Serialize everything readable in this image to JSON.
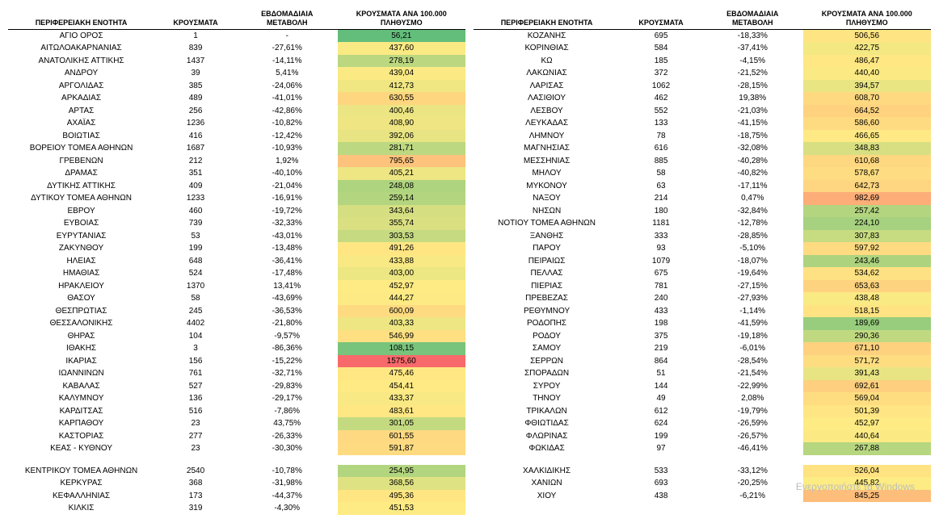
{
  "headers": {
    "region": "ΠΕΡΙΦΕΡΕΙΑΚΗ ΕΝΟΤΗΤΑ",
    "cases": "ΚΡΟΥΣΜΑΤΑ",
    "change": "ΕΒΔΟΜΑΔΙΑΙΑ ΜΕΤΑΒΟΛΗ",
    "per100k": "ΚΡΟΥΣΜΑΤΑ ΑΝΑ 100.000 ΠΛΗΘΥΣΜΟ"
  },
  "watermark": "Ενεργοποιήστε τα Windows",
  "color_scale": {
    "min_color": "#63be7b",
    "mid_color": "#ffeb84",
    "max_color": "#f8696b",
    "min_value": 56.21,
    "max_value": 1575.6
  },
  "left": [
    {
      "region": "ΑΓΙΟ ΟΡΟΣ",
      "cases": "1",
      "change": "-",
      "per100k": "56,21",
      "per100k_v": 56.21
    },
    {
      "region": "ΑΙΤΩΛΟΑΚΑΡΝΑΝΙΑΣ",
      "cases": "839",
      "change": "-27,61%",
      "per100k": "437,60",
      "per100k_v": 437.6
    },
    {
      "region": "ΑΝΑΤΟΛΙΚΗΣ ΑΤΤΙΚΗΣ",
      "cases": "1437",
      "change": "-14,11%",
      "per100k": "278,19",
      "per100k_v": 278.19
    },
    {
      "region": "ΑΝΔΡΟΥ",
      "cases": "39",
      "change": "5,41%",
      "per100k": "439,04",
      "per100k_v": 439.04
    },
    {
      "region": "ΑΡΓΟΛΙΔΑΣ",
      "cases": "385",
      "change": "-24,06%",
      "per100k": "412,73",
      "per100k_v": 412.73
    },
    {
      "region": "ΑΡΚΑΔΙΑΣ",
      "cases": "489",
      "change": "-41,01%",
      "per100k": "630,55",
      "per100k_v": 630.55
    },
    {
      "region": "ΑΡΤΑΣ",
      "cases": "256",
      "change": "-42,86%",
      "per100k": "400,46",
      "per100k_v": 400.46
    },
    {
      "region": "ΑΧΑΪΑΣ",
      "cases": "1236",
      "change": "-10,82%",
      "per100k": "408,90",
      "per100k_v": 408.9
    },
    {
      "region": "ΒΟΙΩΤΙΑΣ",
      "cases": "416",
      "change": "-12,42%",
      "per100k": "392,06",
      "per100k_v": 392.06
    },
    {
      "region": "ΒΟΡΕΙΟΥ ΤΟΜΕΑ ΑΘΗΝΩΝ",
      "cases": "1687",
      "change": "-10,93%",
      "per100k": "281,71",
      "per100k_v": 281.71
    },
    {
      "region": "ΓΡΕΒΕΝΩΝ",
      "cases": "212",
      "change": "1,92%",
      "per100k": "795,65",
      "per100k_v": 795.65
    },
    {
      "region": "ΔΡΑΜΑΣ",
      "cases": "351",
      "change": "-40,10%",
      "per100k": "405,21",
      "per100k_v": 405.21
    },
    {
      "region": "ΔΥΤΙΚΗΣ ΑΤΤΙΚΗΣ",
      "cases": "409",
      "change": "-21,04%",
      "per100k": "248,08",
      "per100k_v": 248.08
    },
    {
      "region": "ΔΥΤΙΚΟΥ ΤΟΜΕΑ ΑΘΗΝΩΝ",
      "cases": "1233",
      "change": "-16,91%",
      "per100k": "259,14",
      "per100k_v": 259.14
    },
    {
      "region": "ΕΒΡΟΥ",
      "cases": "460",
      "change": "-19,72%",
      "per100k": "343,64",
      "per100k_v": 343.64
    },
    {
      "region": "ΕΥΒΟΙΑΣ",
      "cases": "739",
      "change": "-32,33%",
      "per100k": "355,74",
      "per100k_v": 355.74
    },
    {
      "region": "ΕΥΡΥΤΑΝΙΑΣ",
      "cases": "53",
      "change": "-43,01%",
      "per100k": "303,53",
      "per100k_v": 303.53
    },
    {
      "region": "ΖΑΚΥΝΘΟΥ",
      "cases": "199",
      "change": "-13,48%",
      "per100k": "491,26",
      "per100k_v": 491.26
    },
    {
      "region": "ΗΛΕΙΑΣ",
      "cases": "648",
      "change": "-36,41%",
      "per100k": "433,88",
      "per100k_v": 433.88
    },
    {
      "region": "ΗΜΑΘΙΑΣ",
      "cases": "524",
      "change": "-17,48%",
      "per100k": "403,00",
      "per100k_v": 403.0
    },
    {
      "region": "ΗΡΑΚΛΕΙΟΥ",
      "cases": "1370",
      "change": "13,41%",
      "per100k": "452,97",
      "per100k_v": 452.97
    },
    {
      "region": "ΘΑΣΟΥ",
      "cases": "58",
      "change": "-43,69%",
      "per100k": "444,27",
      "per100k_v": 444.27
    },
    {
      "region": "ΘΕΣΠΡΩΤΙΑΣ",
      "cases": "245",
      "change": "-36,53%",
      "per100k": "600,09",
      "per100k_v": 600.09
    },
    {
      "region": "ΘΕΣΣΑΛΟΝΙΚΗΣ",
      "cases": "4402",
      "change": "-21,80%",
      "per100k": "403,33",
      "per100k_v": 403.33
    },
    {
      "region": "ΘΗΡΑΣ",
      "cases": "104",
      "change": "-9,57%",
      "per100k": "546,99",
      "per100k_v": 546.99
    },
    {
      "region": "ΙΘΑΚΗΣ",
      "cases": "3",
      "change": "-86,36%",
      "per100k": "108,15",
      "per100k_v": 108.15
    },
    {
      "region": "ΙΚΑΡΙΑΣ",
      "cases": "156",
      "change": "-15,22%",
      "per100k": "1575,60",
      "per100k_v": 1575.6
    },
    {
      "region": "ΙΩΑΝΝΙΝΩΝ",
      "cases": "761",
      "change": "-32,71%",
      "per100k": "475,46",
      "per100k_v": 475.46
    },
    {
      "region": "ΚΑΒΑΛΑΣ",
      "cases": "527",
      "change": "-29,83%",
      "per100k": "454,41",
      "per100k_v": 454.41
    },
    {
      "region": "ΚΑΛΥΜΝΟΥ",
      "cases": "136",
      "change": "-29,17%",
      "per100k": "433,37",
      "per100k_v": 433.37
    },
    {
      "region": "ΚΑΡΔΙΤΣΑΣ",
      "cases": "516",
      "change": "-7,86%",
      "per100k": "483,61",
      "per100k_v": 483.61
    },
    {
      "region": "ΚΑΡΠΑΘΟΥ",
      "cases": "23",
      "change": "43,75%",
      "per100k": "301,05",
      "per100k_v": 301.05
    },
    {
      "region": "ΚΑΣΤΟΡΙΑΣ",
      "cases": "277",
      "change": "-26,33%",
      "per100k": "601,55",
      "per100k_v": 601.55
    },
    {
      "region": "ΚΕΑΣ - ΚΥΘΝΟΥ",
      "cases": "23",
      "change": "-30,30%",
      "per100k": "591,87",
      "per100k_v": 591.87
    },
    {
      "spacer": true
    },
    {
      "region": "ΚΕΝΤΡΙΚΟΥ ΤΟΜΕΑ ΑΘΗΝΩΝ",
      "cases": "2540",
      "change": "-10,78%",
      "per100k": "254,95",
      "per100k_v": 254.95
    },
    {
      "region": "ΚΕΡΚΥΡΑΣ",
      "cases": "368",
      "change": "-31,98%",
      "per100k": "368,56",
      "per100k_v": 368.56
    },
    {
      "region": "ΚΕΦΑΛΛΗΝΙΑΣ",
      "cases": "173",
      "change": "-44,37%",
      "per100k": "495,36",
      "per100k_v": 495.36
    },
    {
      "region": "ΚΙΛΚΙΣ",
      "cases": "319",
      "change": "-4,30%",
      "per100k": "451,53",
      "per100k_v": 451.53
    }
  ],
  "right": [
    {
      "region": "ΚΟΖΑΝΗΣ",
      "cases": "695",
      "change": "-18,33%",
      "per100k": "506,56",
      "per100k_v": 506.56
    },
    {
      "region": "ΚΟΡΙΝΘΙΑΣ",
      "cases": "584",
      "change": "-37,41%",
      "per100k": "422,75",
      "per100k_v": 422.75
    },
    {
      "region": "ΚΩ",
      "cases": "185",
      "change": "-4,15%",
      "per100k": "486,47",
      "per100k_v": 486.47
    },
    {
      "region": "ΛΑΚΩΝΙΑΣ",
      "cases": "372",
      "change": "-21,52%",
      "per100k": "440,40",
      "per100k_v": 440.4
    },
    {
      "region": "ΛΑΡΙΣΑΣ",
      "cases": "1062",
      "change": "-28,15%",
      "per100k": "394,57",
      "per100k_v": 394.57
    },
    {
      "region": "ΛΑΣΙΘΙΟΥ",
      "cases": "462",
      "change": "19,38%",
      "per100k": "608,70",
      "per100k_v": 608.7
    },
    {
      "region": "ΛΕΣΒΟΥ",
      "cases": "552",
      "change": "-21,03%",
      "per100k": "664,52",
      "per100k_v": 664.52
    },
    {
      "region": "ΛΕΥΚΑΔΑΣ",
      "cases": "133",
      "change": "-41,15%",
      "per100k": "586,60",
      "per100k_v": 586.6
    },
    {
      "region": "ΛΗΜΝΟΥ",
      "cases": "78",
      "change": "-18,75%",
      "per100k": "466,65",
      "per100k_v": 466.65
    },
    {
      "region": "ΜΑΓΝΗΣΙΑΣ",
      "cases": "616",
      "change": "-32,08%",
      "per100k": "348,83",
      "per100k_v": 348.83
    },
    {
      "region": "ΜΕΣΣΗΝΙΑΣ",
      "cases": "885",
      "change": "-40,28%",
      "per100k": "610,68",
      "per100k_v": 610.68
    },
    {
      "region": "ΜΗΛΟΥ",
      "cases": "58",
      "change": "-40,82%",
      "per100k": "578,67",
      "per100k_v": 578.67
    },
    {
      "region": "ΜΥΚΟΝΟΥ",
      "cases": "63",
      "change": "-17,11%",
      "per100k": "642,73",
      "per100k_v": 642.73
    },
    {
      "region": "ΝΑΞΟΥ",
      "cases": "214",
      "change": "0,47%",
      "per100k": "982,69",
      "per100k_v": 982.69
    },
    {
      "region": "ΝΗΣΩΝ",
      "cases": "180",
      "change": "-32,84%",
      "per100k": "257,42",
      "per100k_v": 257.42
    },
    {
      "region": "ΝΟΤΙΟΥ ΤΟΜΕΑ ΑΘΗΝΩΝ",
      "cases": "1181",
      "change": "-12,78%",
      "per100k": "224,10",
      "per100k_v": 224.1
    },
    {
      "region": "ΞΑΝΘΗΣ",
      "cases": "333",
      "change": "-28,85%",
      "per100k": "307,83",
      "per100k_v": 307.83
    },
    {
      "region": "ΠΑΡΟΥ",
      "cases": "93",
      "change": "-5,10%",
      "per100k": "597,92",
      "per100k_v": 597.92
    },
    {
      "region": "ΠΕΙΡΑΙΩΣ",
      "cases": "1079",
      "change": "-18,07%",
      "per100k": "243,46",
      "per100k_v": 243.46
    },
    {
      "region": "ΠΕΛΛΑΣ",
      "cases": "675",
      "change": "-19,64%",
      "per100k": "534,62",
      "per100k_v": 534.62
    },
    {
      "region": "ΠΙΕΡΙΑΣ",
      "cases": "781",
      "change": "-27,15%",
      "per100k": "653,63",
      "per100k_v": 653.63
    },
    {
      "region": "ΠΡΕΒΕΖΑΣ",
      "cases": "240",
      "change": "-27,93%",
      "per100k": "438,48",
      "per100k_v": 438.48
    },
    {
      "region": "ΡΕΘΥΜΝΟΥ",
      "cases": "433",
      "change": "-1,14%",
      "per100k": "518,15",
      "per100k_v": 518.15
    },
    {
      "region": "ΡΟΔΟΠΗΣ",
      "cases": "198",
      "change": "-41,59%",
      "per100k": "189,69",
      "per100k_v": 189.69
    },
    {
      "region": "ΡΟΔΟΥ",
      "cases": "375",
      "change": "-19,18%",
      "per100k": "290,36",
      "per100k_v": 290.36
    },
    {
      "region": "ΣΑΜΟΥ",
      "cases": "219",
      "change": "-6,01%",
      "per100k": "671,10",
      "per100k_v": 671.1
    },
    {
      "region": "ΣΕΡΡΩΝ",
      "cases": "864",
      "change": "-28,54%",
      "per100k": "571,72",
      "per100k_v": 571.72
    },
    {
      "region": "ΣΠΟΡΑΔΩΝ",
      "cases": "51",
      "change": "-21,54%",
      "per100k": "391,43",
      "per100k_v": 391.43
    },
    {
      "region": "ΣΥΡΟΥ",
      "cases": "144",
      "change": "-22,99%",
      "per100k": "692,61",
      "per100k_v": 692.61
    },
    {
      "region": "ΤΗΝΟΥ",
      "cases": "49",
      "change": "2,08%",
      "per100k": "569,04",
      "per100k_v": 569.04
    },
    {
      "region": "ΤΡΙΚΑΛΩΝ",
      "cases": "612",
      "change": "-19,79%",
      "per100k": "501,39",
      "per100k_v": 501.39
    },
    {
      "region": "ΦΘΙΩΤΙΔΑΣ",
      "cases": "624",
      "change": "-26,59%",
      "per100k": "452,97",
      "per100k_v": 452.97
    },
    {
      "region": "ΦΛΩΡΙΝΑΣ",
      "cases": "199",
      "change": "-26,57%",
      "per100k": "440,64",
      "per100k_v": 440.64
    },
    {
      "region": "ΦΩΚΙΔΑΣ",
      "cases": "97",
      "change": "-46,41%",
      "per100k": "267,88",
      "per100k_v": 267.88
    },
    {
      "spacer": true
    },
    {
      "region": "ΧΑΛΚΙΔΙΚΗΣ",
      "cases": "533",
      "change": "-33,12%",
      "per100k": "526,04",
      "per100k_v": 526.04
    },
    {
      "region": "ΧΑΝΙΩΝ",
      "cases": "693",
      "change": "-20,25%",
      "per100k": "445,82",
      "per100k_v": 445.82
    },
    {
      "region": "ΧΙΟΥ",
      "cases": "438",
      "change": "-6,21%",
      "per100k": "845,25",
      "per100k_v": 845.25
    }
  ]
}
